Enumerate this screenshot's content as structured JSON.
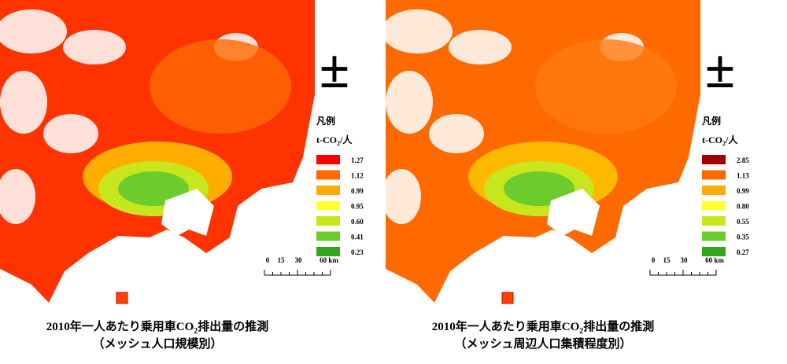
{
  "maps": [
    {
      "legend": {
        "title": "凡例",
        "unit": [
          "t-CO",
          "2",
          "/人"
        ],
        "items": [
          {
            "label": "1.27",
            "color": "#ff0000"
          },
          {
            "label": "1.12",
            "color": "#ff6a00"
          },
          {
            "label": "0.99",
            "color": "#ffaa00"
          },
          {
            "label": "0.95",
            "color": "#ffff33"
          },
          {
            "label": "0.60",
            "color": "#c8e61e"
          },
          {
            "label": "0.41",
            "color": "#6ccc2e"
          },
          {
            "label": "0.23",
            "color": "#33a61e"
          }
        ]
      },
      "scale": [
        "0",
        "15",
        "30",
        "60 km"
      ],
      "caption": [
        [
          "2010年一人あたり乗用車CO",
          "2",
          "排出量の推測"
        ],
        "（メッシュ人口規模別）"
      ]
    },
    {
      "legend": {
        "title": "凡例",
        "unit": [
          "t-CO",
          "2",
          "/人"
        ],
        "items": [
          {
            "label": "2.85",
            "color": "#a00000"
          },
          {
            "label": "1.13",
            "color": "#ff6a00"
          },
          {
            "label": "0.99",
            "color": "#ffaa00"
          },
          {
            "label": "0.80",
            "color": "#ffff33"
          },
          {
            "label": "0.55",
            "color": "#c8e61e"
          },
          {
            "label": "0.35",
            "color": "#6ccc2e"
          },
          {
            "label": "0.27",
            "color": "#33a61e"
          }
        ]
      },
      "scale": [
        "0",
        "15",
        "30",
        "60 km"
      ],
      "caption": [
        [
          "2010年一人あたり乗用車CO",
          "2",
          "排出量の推測"
        ],
        "（メッシュ周辺人口集積程度別）"
      ]
    }
  ]
}
